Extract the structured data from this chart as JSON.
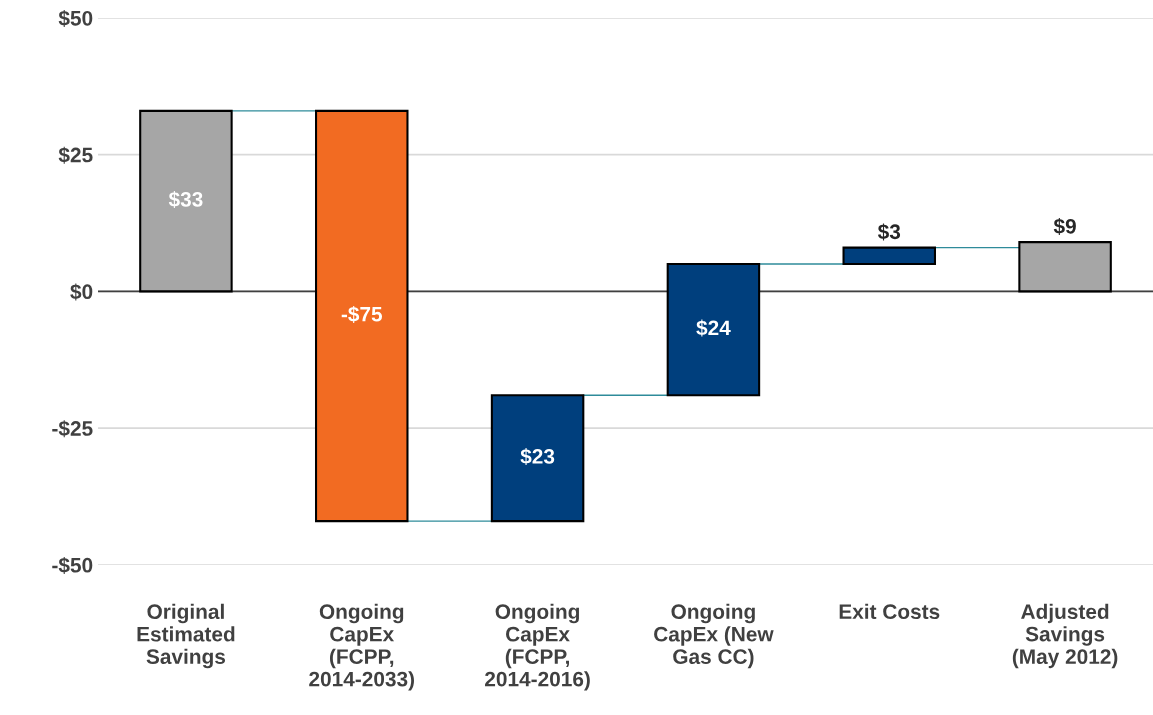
{
  "chart_data": {
    "type": "bar",
    "categories": [
      "Original Estimated Savings",
      "Ongoing CapEx (FCPP, 2014-2033)",
      "Ongoing CapEx (FCPP, 2014-2016)",
      "Ongoing CapEx (New Gas CC)",
      "Exit Costs",
      "Adjusted Savings (May 2012)"
    ],
    "values": [
      33,
      -75,
      23,
      24,
      3,
      9
    ],
    "base": [
      0,
      33,
      -42,
      -19,
      5,
      0
    ],
    "colors": [
      "#a6a6a6",
      "#f26b22",
      "#003f7d",
      "#003f7d",
      "#003f7d",
      "#a6a6a6"
    ],
    "value_labels": [
      "$33",
      "-$75",
      "$23",
      "$24",
      "$3",
      "$9"
    ],
    "ylim": [
      -50,
      50
    ],
    "yticks": [
      {
        "value": -50,
        "label": "-$50"
      },
      {
        "value": -25,
        "label": "-$25"
      },
      {
        "value": 0,
        "label": "$0"
      },
      {
        "value": 25,
        "label": "$25"
      },
      {
        "value": 50,
        "label": "$50"
      }
    ],
    "grid": "y"
  }
}
